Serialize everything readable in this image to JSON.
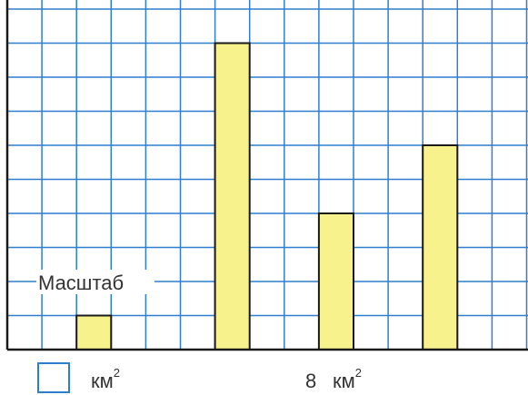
{
  "chart_data": {
    "type": "bar",
    "categories": [
      "",
      "",
      "",
      ""
    ],
    "values": [
      1,
      9,
      4,
      6
    ],
    "unit_cell_value": 8,
    "ylim": [
      0,
      10
    ],
    "grid": true,
    "legend": {
      "label": "Масштаб",
      "blank_unit": "км",
      "blank_exp": "2",
      "scale_value": "8",
      "scale_unit": "км",
      "scale_exp": "2"
    }
  },
  "colors": {
    "grid": "#2f7fd0",
    "bar_fill": "#f7f28c",
    "bar_stroke": "#1a1a1a",
    "axis": "#1a1a1a",
    "text": "#333333",
    "legend_box": "#2f7fd0"
  }
}
